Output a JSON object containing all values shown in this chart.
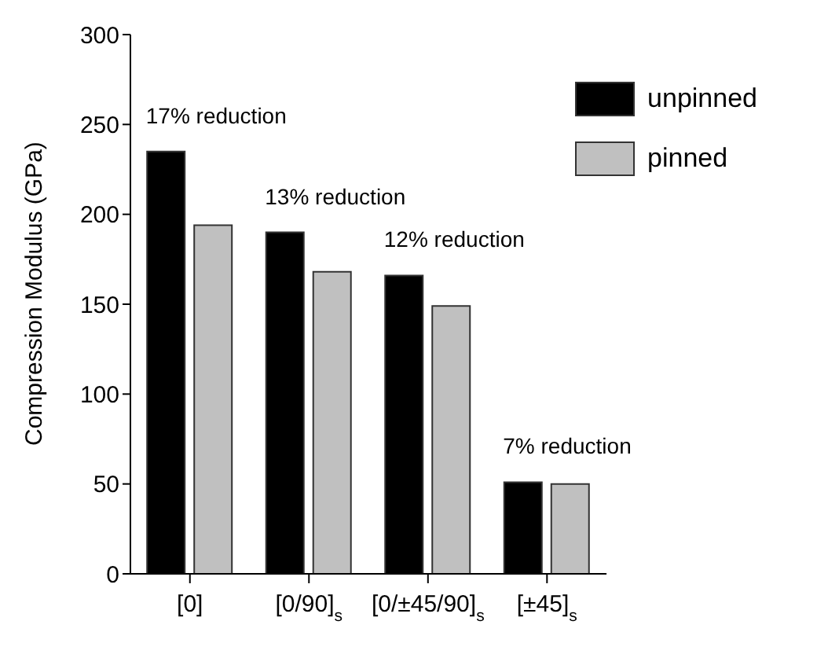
{
  "chart_data": {
    "type": "bar",
    "ylabel": "Compression Modulus (GPa)",
    "categories": [
      "[0]",
      "[0/90]$_{s}$",
      "[0/±45/90]$_{s}$",
      "[±45]$_{s}$"
    ],
    "series": [
      {
        "name": "unpinned",
        "color": "#000000",
        "values": [
          235,
          190,
          166,
          51
        ]
      },
      {
        "name": "pinned",
        "color": "#c0c0c0",
        "values": [
          194,
          168,
          149,
          50
        ]
      }
    ],
    "ylim": [
      0,
      300
    ],
    "yticks": [
      0,
      50,
      100,
      150,
      200,
      250,
      300
    ],
    "grid": false,
    "legend": "top right",
    "annotations": [
      "17% reduction",
      "13% reduction",
      "12% reduction",
      "7% reduction"
    ]
  }
}
